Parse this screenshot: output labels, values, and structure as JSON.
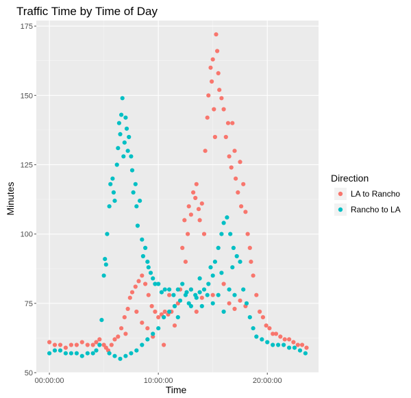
{
  "chart_data": {
    "type": "scatter",
    "title": "Traffic Time by Time of Day",
    "xlabel": "Time",
    "ylabel": "Minutes",
    "x_unit": "hours",
    "xlim": [
      -1.2,
      24.7
    ],
    "ylim": [
      50,
      177
    ],
    "x_ticks": [
      {
        "value": 0,
        "label": "00:00:00"
      },
      {
        "value": 10,
        "label": "10:00:00"
      },
      {
        "value": 20,
        "label": "20:00:00"
      }
    ],
    "y_ticks": [
      50,
      75,
      100,
      125,
      150,
      175
    ],
    "grid": true,
    "legend": {
      "title": "Direction",
      "position": "right"
    },
    "colors": {
      "LA to Rancho": "#f8766d",
      "Rancho to LA": "#00bfc4",
      "panel": "#ebebeb",
      "grid": "#ffffff"
    },
    "series": [
      {
        "name": "LA to Rancho",
        "color": "#f8766d",
        "points": [
          [
            0,
            61
          ],
          [
            0.5,
            60
          ],
          [
            1,
            60
          ],
          [
            1.5,
            59
          ],
          [
            2,
            60
          ],
          [
            2.5,
            60
          ],
          [
            3,
            61
          ],
          [
            3.5,
            60
          ],
          [
            4,
            60
          ],
          [
            4.3,
            61
          ],
          [
            4.6,
            62
          ],
          [
            5,
            60
          ],
          [
            5.2,
            59
          ],
          [
            5.4,
            58
          ],
          [
            5.7,
            60
          ],
          [
            6,
            62
          ],
          [
            6.3,
            63
          ],
          [
            6.6,
            66
          ],
          [
            6.9,
            70
          ],
          [
            7.2,
            73
          ],
          [
            7.4,
            77
          ],
          [
            7.6,
            79
          ],
          [
            7.9,
            81
          ],
          [
            8.2,
            83
          ],
          [
            8.5,
            85
          ],
          [
            8.8,
            82
          ],
          [
            9.1,
            78
          ],
          [
            9.4,
            74
          ],
          [
            9.7,
            72
          ],
          [
            10,
            70
          ],
          [
            10.3,
            71
          ],
          [
            10.6,
            72
          ],
          [
            10.9,
            71
          ],
          [
            11.2,
            72
          ],
          [
            11.5,
            74
          ],
          [
            11.8,
            75
          ],
          [
            12,
            80
          ],
          [
            12.2,
            95
          ],
          [
            12.4,
            105
          ],
          [
            12.5,
            90
          ],
          [
            12.7,
            100
          ],
          [
            12.8,
            110
          ],
          [
            13,
            107
          ],
          [
            13.2,
            115
          ],
          [
            13.4,
            113
          ],
          [
            13.5,
            118
          ],
          [
            13.7,
            109
          ],
          [
            13.8,
            105
          ],
          [
            14,
            111
          ],
          [
            14.2,
            100
          ],
          [
            14.3,
            130
          ],
          [
            14.5,
            142
          ],
          [
            14.6,
            150
          ],
          [
            14.8,
            160
          ],
          [
            14.9,
            155
          ],
          [
            15,
            163
          ],
          [
            15.1,
            145
          ],
          [
            15.2,
            135
          ],
          [
            15.3,
            172
          ],
          [
            15.4,
            166
          ],
          [
            15.5,
            158
          ],
          [
            15.6,
            152
          ],
          [
            15.8,
            149
          ],
          [
            16,
            145
          ],
          [
            16.2,
            135
          ],
          [
            16.4,
            140
          ],
          [
            16.5,
            128
          ],
          [
            16.7,
            124
          ],
          [
            16.8,
            140
          ],
          [
            17,
            130
          ],
          [
            17.1,
            120
          ],
          [
            17.3,
            115
          ],
          [
            17.5,
            126
          ],
          [
            17.6,
            110
          ],
          [
            17.8,
            118
          ],
          [
            18,
            108
          ],
          [
            18.2,
            100
          ],
          [
            18.4,
            95
          ],
          [
            18.5,
            90
          ],
          [
            18.7,
            85
          ],
          [
            19,
            78
          ],
          [
            19.3,
            72
          ],
          [
            19.6,
            70
          ],
          [
            19.9,
            67
          ],
          [
            20.2,
            66
          ],
          [
            20.5,
            64
          ],
          [
            20.8,
            64
          ],
          [
            21.2,
            63
          ],
          [
            21.6,
            62
          ],
          [
            22,
            62
          ],
          [
            22.4,
            61
          ],
          [
            22.8,
            60
          ],
          [
            23.2,
            60
          ],
          [
            23.6,
            59
          ],
          [
            13,
            80
          ],
          [
            13.5,
            72
          ],
          [
            14,
            77
          ],
          [
            15,
            78
          ],
          [
            16,
            82
          ],
          [
            16.5,
            75
          ],
          [
            17,
            73
          ],
          [
            17.5,
            76
          ],
          [
            18,
            74
          ],
          [
            11,
            78
          ],
          [
            11.5,
            67
          ],
          [
            10.5,
            60
          ],
          [
            9.5,
            63
          ],
          [
            8.5,
            68
          ],
          [
            8,
            72
          ],
          [
            9,
            66
          ],
          [
            7,
            64
          ]
        ]
      },
      {
        "name": "Rancho to LA",
        "color": "#00bfc4",
        "points": [
          [
            0,
            57
          ],
          [
            0.5,
            58
          ],
          [
            1,
            58
          ],
          [
            1.5,
            57
          ],
          [
            2,
            57
          ],
          [
            2.5,
            57
          ],
          [
            3,
            56
          ],
          [
            3.5,
            57
          ],
          [
            4,
            57
          ],
          [
            4.3,
            58
          ],
          [
            4.6,
            60
          ],
          [
            4.8,
            69
          ],
          [
            5,
            85
          ],
          [
            5.1,
            91
          ],
          [
            5.2,
            89
          ],
          [
            5.3,
            100
          ],
          [
            5.5,
            110
          ],
          [
            5.6,
            118
          ],
          [
            5.8,
            120
          ],
          [
            5.9,
            115
          ],
          [
            6,
            112
          ],
          [
            6.2,
            125
          ],
          [
            6.3,
            131
          ],
          [
            6.4,
            140
          ],
          [
            6.5,
            136
          ],
          [
            6.6,
            143
          ],
          [
            6.7,
            149
          ],
          [
            6.8,
            128
          ],
          [
            6.9,
            133
          ],
          [
            7,
            142
          ],
          [
            7.1,
            138
          ],
          [
            7.2,
            130
          ],
          [
            7.3,
            135
          ],
          [
            7.5,
            128
          ],
          [
            7.6,
            123
          ],
          [
            7.7,
            115
          ],
          [
            7.9,
            118
          ],
          [
            8,
            110
          ],
          [
            8.1,
            103
          ],
          [
            8.3,
            112
          ],
          [
            8.5,
            98
          ],
          [
            8.6,
            92
          ],
          [
            8.8,
            95
          ],
          [
            9,
            90
          ],
          [
            9.1,
            88
          ],
          [
            9.3,
            86
          ],
          [
            9.5,
            84
          ],
          [
            9.7,
            82
          ],
          [
            10,
            82
          ],
          [
            10.3,
            79
          ],
          [
            10.6,
            80
          ],
          [
            11,
            80
          ],
          [
            11.4,
            78
          ],
          [
            11.8,
            80
          ],
          [
            12.2,
            82
          ],
          [
            12.6,
            79
          ],
          [
            13,
            80
          ],
          [
            13.4,
            78
          ],
          [
            13.8,
            79
          ],
          [
            14.2,
            80
          ],
          [
            14.6,
            82
          ],
          [
            15,
            85
          ],
          [
            15.2,
            90
          ],
          [
            15.5,
            95
          ],
          [
            15.8,
            100
          ],
          [
            16,
            104
          ],
          [
            16.3,
            106
          ],
          [
            16.6,
            100
          ],
          [
            16.9,
            95
          ],
          [
            17.2,
            92
          ],
          [
            17.5,
            90
          ],
          [
            17.8,
            80
          ],
          [
            18.1,
            75
          ],
          [
            18.4,
            70
          ],
          [
            18.7,
            66
          ],
          [
            19,
            63
          ],
          [
            19.5,
            62
          ],
          [
            20,
            61
          ],
          [
            20.5,
            60
          ],
          [
            21,
            60
          ],
          [
            21.5,
            60
          ],
          [
            22,
            59
          ],
          [
            22.5,
            59
          ],
          [
            23,
            58
          ],
          [
            23.5,
            57
          ],
          [
            5.5,
            57
          ],
          [
            6,
            56
          ],
          [
            6.5,
            55
          ],
          [
            7,
            56
          ],
          [
            7.5,
            57
          ],
          [
            8,
            58
          ],
          [
            8.5,
            60
          ],
          [
            9,
            62
          ],
          [
            9.5,
            64
          ],
          [
            10,
            66
          ],
          [
            10.5,
            70
          ],
          [
            11,
            72
          ],
          [
            11.5,
            74
          ],
          [
            12,
            76
          ],
          [
            12.5,
            78
          ],
          [
            13,
            74
          ],
          [
            13.5,
            77
          ],
          [
            14,
            74
          ],
          [
            14.5,
            78
          ],
          [
            15,
            75
          ],
          [
            15.5,
            78
          ],
          [
            16,
            72
          ],
          [
            16.5,
            80
          ],
          [
            17,
            78
          ],
          [
            14.8,
            88
          ],
          [
            15.8,
            86
          ],
          [
            16.8,
            88
          ],
          [
            13.8,
            84
          ],
          [
            12.8,
            75
          ],
          [
            11.8,
            70
          ]
        ]
      }
    ]
  }
}
